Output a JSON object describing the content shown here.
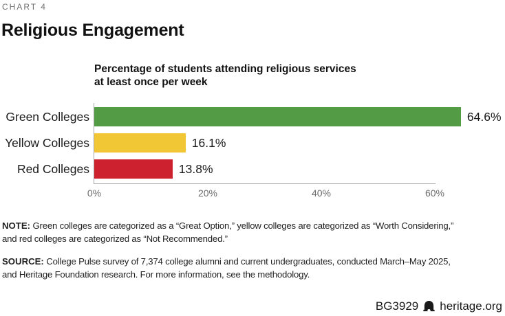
{
  "meta": {
    "chart_label": "CHART 4",
    "title": "Religious Engagement",
    "subtitle_lines": [
      "Percentage of students attending religious services",
      "at least once per week"
    ]
  },
  "chart_data": {
    "type": "bar",
    "orientation": "horizontal",
    "title": "Religious Engagement",
    "subtitle": "Percentage of students attending religious services at least once per week",
    "categories": [
      "Green Colleges",
      "Yellow Colleges",
      "Red Colleges"
    ],
    "values": [
      64.6,
      16.1,
      13.8
    ],
    "value_labels": [
      "64.6%",
      "16.1%",
      "13.8%"
    ],
    "bar_colors": [
      "#539b44",
      "#f2c736",
      "#ce2130"
    ],
    "xlim": [
      0,
      60
    ],
    "x_ticks": [
      "0%",
      "20%",
      "40%",
      "60%"
    ],
    "x_tick_values": [
      0,
      20,
      40,
      60
    ],
    "grid": false,
    "legend": false
  },
  "notes": {
    "note": {
      "label": "NOTE:",
      "lines": [
        "Green colleges are categorized as a “Great Option,” yellow colleges are categorized as “Worth Considering,”",
        "and red colleges are categorized as “Not Recommended.”"
      ]
    },
    "source": {
      "label": "SOURCE:",
      "lines": [
        "College Pulse survey of 7,374 college alumni and current undergraduates, conducted March–May 2025,",
        "and Heritage Foundation research. For more information, see the methodology."
      ]
    }
  },
  "footer": {
    "doc_id": "BG3929",
    "site": "heritage.org",
    "logo_icon": "heritage-bell-icon"
  },
  "colors": {
    "green": "#539b44",
    "yellow": "#f2c736",
    "red": "#ce2130",
    "axis": "#a6a6a6",
    "tick_text": "#6b6b6b",
    "eyebrow_text": "#6e6e6e",
    "body_text": "#1a1a1a"
  }
}
